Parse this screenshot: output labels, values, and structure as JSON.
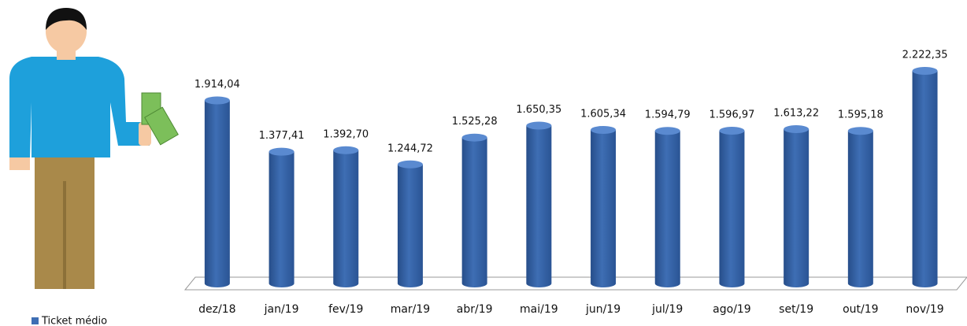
{
  "chart_data": {
    "type": "bar3d",
    "categories": [
      "dez/18",
      "jan/19",
      "fev/19",
      "mar/19",
      "abr/19",
      "mai/19",
      "jun/19",
      "jul/19",
      "ago/19",
      "set/19",
      "out/19",
      "nov/19"
    ],
    "series": [
      {
        "name": "Ticket médio",
        "color": "#3e6eb4",
        "values": [
          1914.04,
          1377.41,
          1392.7,
          1244.72,
          1525.28,
          1650.35,
          1605.34,
          1594.79,
          1596.97,
          1613.22,
          1595.18,
          2222.35
        ],
        "value_labels": [
          "1.914,04",
          "1.377,41",
          "1.392,70",
          "1.244,72",
          "1.525,28",
          "1.650,35",
          "1.605,34",
          "1.594,79",
          "1.596,97",
          "1.613,22",
          "1.595,18",
          "2.222,35"
        ]
      }
    ]
  }
}
